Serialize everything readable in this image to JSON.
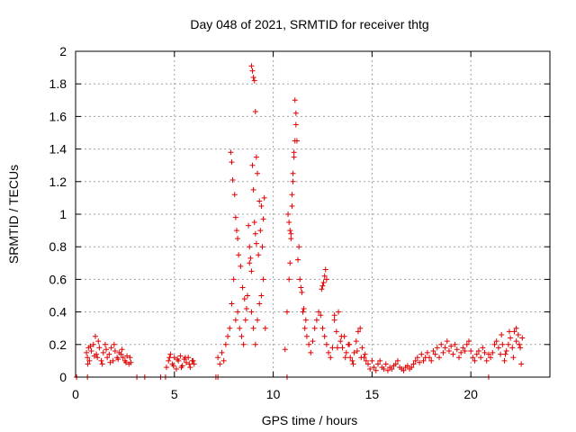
{
  "chart_data": {
    "type": "scatter",
    "title": "Day 048 of 2021, SRMTID for receiver thtg",
    "xlabel": "GPS time / hours",
    "ylabel": "SRMTID / TECUs",
    "xlim": [
      0,
      24
    ],
    "ylim": [
      0,
      2
    ],
    "xticks": [
      0,
      5,
      10,
      15,
      20
    ],
    "yticks": [
      0,
      0.2,
      0.4,
      0.6,
      0.8,
      1,
      1.2,
      1.4,
      1.6,
      1.8,
      2
    ],
    "xtick_labels": [
      "0",
      "5",
      "10",
      "15",
      "20"
    ],
    "ytick_labels": [
      "0",
      "0.2",
      "0.4",
      "0.6",
      "0.8",
      "1",
      "1.2",
      "1.4",
      "1.6",
      "1.8",
      "2"
    ],
    "grid": true,
    "marker": "plus",
    "color": "#e00000",
    "series": [
      {
        "name": "SRMTID",
        "x": [
          0.55,
          0.6,
          0.65,
          0.7,
          0.8,
          0.9,
          1.0,
          1.05,
          1.1,
          1.2,
          1.3,
          1.4,
          1.5,
          1.6,
          1.7,
          1.8,
          1.9,
          2.0,
          2.1,
          2.2,
          2.3,
          2.4,
          2.5,
          2.6,
          2.7,
          2.8,
          0.62,
          0.75,
          0.95,
          1.15,
          1.35,
          1.55,
          1.75,
          1.95,
          2.15,
          2.35,
          2.55,
          2.75,
          4.6,
          4.7,
          4.8,
          4.9,
          5.0,
          5.1,
          5.2,
          5.3,
          5.4,
          5.5,
          5.6,
          5.7,
          5.8,
          5.9,
          6.0,
          4.75,
          4.95,
          5.15,
          5.35,
          5.55,
          5.75,
          5.95,
          7.2,
          7.3,
          7.4,
          7.5,
          7.6,
          7.7,
          7.8,
          7.9,
          8.0,
          8.1,
          8.2,
          8.3,
          8.4,
          8.5,
          8.6,
          8.7,
          8.8,
          8.9,
          9.0,
          9.1,
          9.2,
          9.3,
          9.4,
          9.5,
          9.6,
          7.85,
          7.9,
          7.95,
          8.05,
          8.1,
          8.15,
          8.2,
          8.25,
          8.35,
          8.45,
          8.55,
          8.65,
          8.75,
          8.8,
          8.85,
          8.9,
          8.95,
          9.0,
          9.05,
          9.1,
          9.15,
          9.25,
          9.35,
          9.45,
          9.55,
          8.9,
          8.95,
          9.0,
          9.05,
          9.1,
          9.15,
          9.2,
          9.3,
          9.4,
          9.5,
          10.6,
          10.7,
          10.8,
          10.85,
          10.9,
          10.95,
          11.0,
          11.05,
          11.1,
          11.15,
          11.2,
          11.3,
          11.4,
          11.5,
          11.6,
          11.7,
          11.8,
          11.9,
          12.0,
          12.1,
          12.2,
          12.3,
          12.4,
          12.5,
          12.6,
          12.7,
          12.8,
          12.9,
          13.0,
          10.75,
          10.8,
          10.85,
          10.9,
          10.95,
          11.0,
          11.05,
          11.1,
          11.15,
          11.25,
          11.35,
          11.45,
          11.55,
          11.65,
          12.45,
          12.5,
          12.55,
          12.6,
          12.65,
          12.7,
          13.1,
          13.2,
          13.3,
          13.4,
          13.5,
          13.6,
          13.7,
          13.8,
          13.9,
          14.0,
          14.1,
          14.2,
          14.3,
          14.4,
          14.5,
          14.6,
          14.7,
          13.1,
          13.25,
          13.45,
          13.65,
          13.85,
          14.05,
          14.25,
          14.45,
          14.65,
          14.8,
          14.9,
          15.0,
          15.1,
          15.2,
          15.3,
          15.4,
          15.5,
          15.6,
          15.7,
          15.8,
          15.9,
          16.0,
          16.1,
          16.2,
          16.3,
          16.4,
          16.5,
          16.6,
          16.7,
          16.8,
          16.9,
          17.0,
          17.1,
          17.2,
          17.3,
          17.4,
          17.5,
          17.6,
          17.7,
          17.8,
          17.9,
          18.0,
          18.1,
          18.2,
          18.3,
          18.4,
          18.5,
          18.6,
          18.7,
          18.8,
          18.9,
          19.0,
          19.1,
          19.2,
          19.3,
          19.4,
          19.5,
          19.6,
          19.7,
          19.8,
          19.9,
          20.0,
          20.1,
          20.2,
          20.3,
          20.4,
          20.5,
          20.6,
          20.7,
          20.8,
          20.9,
          21.0,
          21.1,
          21.2,
          21.3,
          21.4,
          21.5,
          21.6,
          21.7,
          21.8,
          21.9,
          22.0,
          22.1,
          22.2,
          22.3,
          22.4,
          22.5,
          22.6,
          21.55,
          21.75,
          21.95,
          22.15,
          22.3,
          22.45,
          22.55,
          0.05,
          0.6,
          3.1,
          3.5,
          4.3,
          4.55,
          7.1,
          7.2,
          10.7,
          20.9
        ],
        "y": [
          0.15,
          0.12,
          0.18,
          0.1,
          0.16,
          0.2,
          0.25,
          0.14,
          0.12,
          0.18,
          0.1,
          0.15,
          0.2,
          0.12,
          0.14,
          0.18,
          0.1,
          0.16,
          0.12,
          0.15,
          0.14,
          0.12,
          0.1,
          0.13,
          0.08,
          0.09,
          0.08,
          0.19,
          0.13,
          0.22,
          0.08,
          0.17,
          0.09,
          0.2,
          0.11,
          0.17,
          0.09,
          0.12,
          0.06,
          0.1,
          0.14,
          0.08,
          0.12,
          0.05,
          0.1,
          0.13,
          0.07,
          0.11,
          0.09,
          0.12,
          0.06,
          0.1,
          0.08,
          0.12,
          0.07,
          0.11,
          0.06,
          0.12,
          0.08,
          0.1,
          0.12,
          0.08,
          0.15,
          0.1,
          0.2,
          0.25,
          0.3,
          0.45,
          0.6,
          0.35,
          0.4,
          0.3,
          0.25,
          0.2,
          0.35,
          0.5,
          0.7,
          0.4,
          0.3,
          0.2,
          0.35,
          0.45,
          0.5,
          0.6,
          0.3,
          1.38,
          1.32,
          1.21,
          1.12,
          0.98,
          0.9,
          0.85,
          0.75,
          0.68,
          0.55,
          0.48,
          0.42,
          0.93,
          0.8,
          0.73,
          0.65,
          1.3,
          1.15,
          0.95,
          0.88,
          0.82,
          0.75,
          0.9,
          0.8,
          1.1,
          1.91,
          1.88,
          1.84,
          1.82,
          1.63,
          1.35,
          1.25,
          1.08,
          1.05,
          0.97,
          0.17,
          0.4,
          0.6,
          0.7,
          0.85,
          1.05,
          1.2,
          1.38,
          1.7,
          1.62,
          1.45,
          0.8,
          0.55,
          0.4,
          0.3,
          0.25,
          0.2,
          0.15,
          0.22,
          0.3,
          0.35,
          0.4,
          0.38,
          0.3,
          0.25,
          0.2,
          0.15,
          0.12,
          0.18,
          1.0,
          0.95,
          0.9,
          0.88,
          1.12,
          1.25,
          1.35,
          1.45,
          1.55,
          0.72,
          0.6,
          0.52,
          0.42,
          0.35,
          0.54,
          0.56,
          0.58,
          0.62,
          0.66,
          0.6,
          0.35,
          0.28,
          0.4,
          0.22,
          0.18,
          0.25,
          0.15,
          0.2,
          0.12,
          0.1,
          0.15,
          0.22,
          0.28,
          0.3,
          0.18,
          0.12,
          0.1,
          0.38,
          0.18,
          0.25,
          0.12,
          0.2,
          0.08,
          0.16,
          0.12,
          0.14,
          0.08,
          0.05,
          0.1,
          0.06,
          0.04,
          0.08,
          0.1,
          0.06,
          0.05,
          0.08,
          0.04,
          0.06,
          0.05,
          0.07,
          0.08,
          0.1,
          0.06,
          0.05,
          0.04,
          0.06,
          0.07,
          0.05,
          0.06,
          0.08,
          0.1,
          0.12,
          0.09,
          0.14,
          0.1,
          0.12,
          0.15,
          0.12,
          0.1,
          0.16,
          0.14,
          0.18,
          0.12,
          0.2,
          0.15,
          0.18,
          0.22,
          0.16,
          0.19,
          0.14,
          0.2,
          0.17,
          0.12,
          0.15,
          0.18,
          0.16,
          0.2,
          0.22,
          0.16,
          0.12,
          0.1,
          0.14,
          0.16,
          0.12,
          0.18,
          0.15,
          0.1,
          0.14,
          0.12,
          0.15,
          0.2,
          0.22,
          0.18,
          0.14,
          0.2,
          0.1,
          0.16,
          0.2,
          0.24,
          0.18,
          0.28,
          0.22,
          0.26,
          0.18,
          0.24,
          0.26,
          0.14,
          0.28,
          0.12,
          0.3,
          0.2,
          0.08,
          0.0,
          0.0,
          0.0,
          0.0,
          0.0,
          0.0,
          0.0,
          0.0,
          0.0,
          0.0
        ]
      }
    ]
  }
}
